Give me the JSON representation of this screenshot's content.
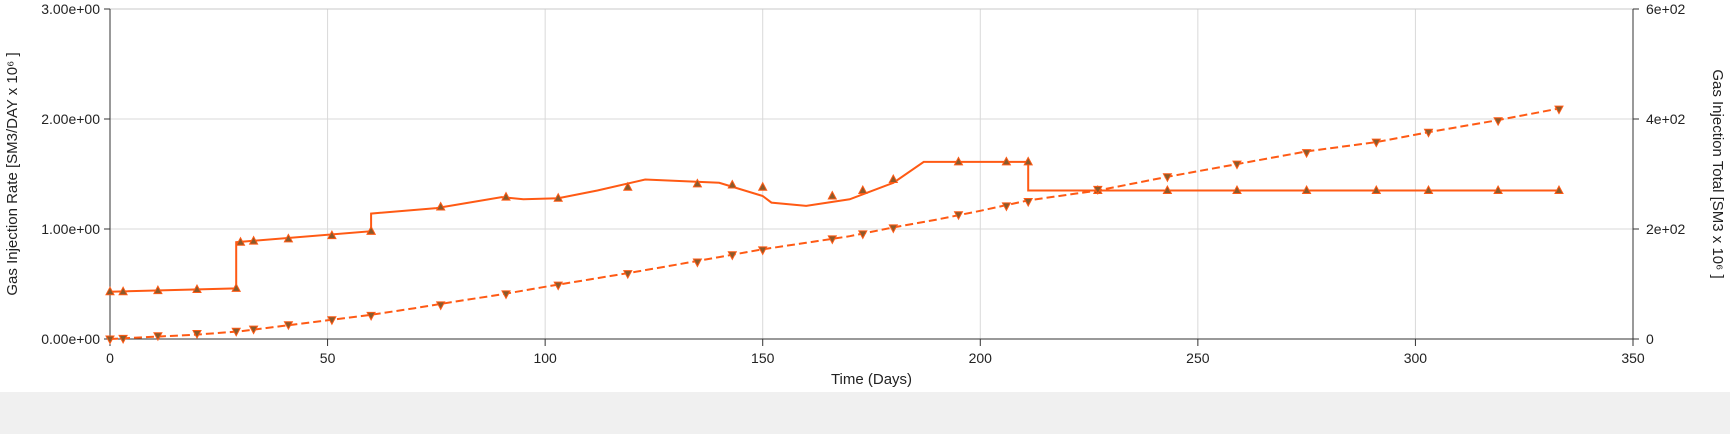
{
  "chart_data": {
    "type": "line",
    "xlabel": "Time (Days)",
    "ylabel_left": "Gas Injection Rate [SM3/DAY x 10⁶ ]",
    "ylabel_right": "Gas Injection Total [SM3 x 10⁶ ]",
    "x_range": [
      0,
      350
    ],
    "y_left_range": [
      0,
      3
    ],
    "y_right_range": [
      0,
      600
    ],
    "x_ticks": [
      0,
      50,
      100,
      150,
      200,
      250,
      300,
      350
    ],
    "x_tick_labels": [
      "0",
      "50",
      "100",
      "150",
      "200",
      "250",
      "300",
      "350"
    ],
    "y_left_ticks": [
      0,
      1,
      2,
      3
    ],
    "y_left_tick_labels": [
      "0.00e+00",
      "1.00e+00",
      "2.00e+00",
      "3.00e+00"
    ],
    "y_right_ticks": [
      0,
      200,
      400,
      600
    ],
    "y_right_tick_labels": [
      "0",
      "2e+02",
      "4e+02",
      "6e+02"
    ],
    "grid": true,
    "colors": {
      "rate": "#ff5a14",
      "total": "#ff5a14",
      "marker_fill": "#8b5a2b",
      "grid": "#d9d9d9"
    },
    "series": [
      {
        "axis": "left",
        "style": "solid",
        "marker": "triangle-up",
        "line_points": [
          [
            0,
            0.43
          ],
          [
            29,
            0.46
          ],
          [
            29,
            0.88
          ],
          [
            60,
            0.98
          ],
          [
            60,
            1.14
          ],
          [
            75,
            1.19
          ],
          [
            90,
            1.29
          ],
          [
            95,
            1.27
          ],
          [
            103,
            1.28
          ],
          [
            112,
            1.35
          ],
          [
            123,
            1.45
          ],
          [
            140,
            1.42
          ],
          [
            150,
            1.3
          ],
          [
            152,
            1.24
          ],
          [
            160,
            1.21
          ],
          [
            170,
            1.27
          ],
          [
            180,
            1.42
          ],
          [
            187,
            1.61
          ],
          [
            211,
            1.61
          ],
          [
            211,
            1.35
          ],
          [
            333,
            1.35
          ]
        ],
        "markers": [
          [
            0,
            0.43
          ],
          [
            3,
            0.43
          ],
          [
            11,
            0.44
          ],
          [
            20,
            0.45
          ],
          [
            29,
            0.46
          ],
          [
            30,
            0.88
          ],
          [
            33,
            0.89
          ],
          [
            41,
            0.91
          ],
          [
            51,
            0.94
          ],
          [
            60,
            0.98
          ],
          [
            60,
            0.98
          ],
          [
            76,
            1.2
          ],
          [
            91,
            1.29
          ],
          [
            103,
            1.28
          ],
          [
            119,
            1.38
          ],
          [
            135,
            1.41
          ],
          [
            143,
            1.4
          ],
          [
            150,
            1.38
          ],
          [
            166,
            1.3
          ],
          [
            173,
            1.35
          ],
          [
            180,
            1.45
          ],
          [
            195,
            1.61
          ],
          [
            206,
            1.61
          ],
          [
            211,
            1.61
          ],
          [
            227,
            1.35
          ],
          [
            243,
            1.35
          ],
          [
            259,
            1.35
          ],
          [
            275,
            1.35
          ],
          [
            291,
            1.35
          ],
          [
            303,
            1.35
          ],
          [
            319,
            1.35
          ],
          [
            333,
            1.35
          ]
        ]
      },
      {
        "axis": "right",
        "style": "dashed",
        "marker": "triangle-down",
        "line_points": [
          [
            0,
            0
          ],
          [
            10,
            4
          ],
          [
            20,
            8
          ],
          [
            30,
            14
          ],
          [
            40,
            24
          ],
          [
            50,
            34
          ],
          [
            60,
            44
          ],
          [
            70,
            56
          ],
          [
            80,
            69
          ],
          [
            90,
            81
          ],
          [
            100,
            95
          ],
          [
            110,
            108
          ],
          [
            120,
            121
          ],
          [
            130,
            135
          ],
          [
            140,
            149
          ],
          [
            150,
            163
          ],
          [
            160,
            175
          ],
          [
            170,
            187
          ],
          [
            180,
            203
          ],
          [
            190,
            217
          ],
          [
            200,
            233
          ],
          [
            211,
            252
          ],
          [
            227,
            270
          ],
          [
            243,
            295
          ],
          [
            259,
            318
          ],
          [
            275,
            341
          ],
          [
            291,
            358
          ],
          [
            303,
            376
          ],
          [
            319,
            398
          ],
          [
            333,
            419
          ]
        ],
        "markers": [
          [
            0,
            0
          ],
          [
            3,
            1
          ],
          [
            11,
            6
          ],
          [
            20,
            10
          ],
          [
            29,
            14
          ],
          [
            33,
            18
          ],
          [
            41,
            26
          ],
          [
            51,
            35
          ],
          [
            60,
            43
          ],
          [
            76,
            62
          ],
          [
            91,
            82
          ],
          [
            103,
            98
          ],
          [
            119,
            119
          ],
          [
            135,
            140
          ],
          [
            143,
            153
          ],
          [
            150,
            162
          ],
          [
            166,
            182
          ],
          [
            173,
            191
          ],
          [
            180,
            202
          ],
          [
            195,
            226
          ],
          [
            206,
            242
          ],
          [
            211,
            250
          ],
          [
            227,
            272
          ],
          [
            243,
            295
          ],
          [
            259,
            318
          ],
          [
            275,
            339
          ],
          [
            291,
            358
          ],
          [
            303,
            376
          ],
          [
            319,
            397
          ],
          [
            333,
            418
          ]
        ]
      }
    ]
  }
}
